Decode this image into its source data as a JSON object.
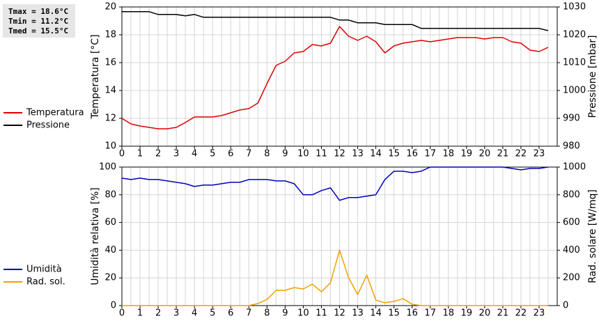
{
  "chart_data": [
    {
      "type": "line",
      "ylabel": "Temperatura [°C]",
      "y2label": "Pressione [mbar]",
      "x": [
        0,
        0.5,
        1,
        1.5,
        2,
        2.5,
        3,
        3.5,
        4,
        4.5,
        5,
        5.5,
        6,
        6.5,
        7,
        7.5,
        8,
        8.5,
        9,
        9.5,
        10,
        10.5,
        11,
        11.5,
        12,
        12.5,
        13,
        13.5,
        14,
        14.5,
        15,
        15.5,
        16,
        16.5,
        17,
        17.5,
        18,
        18.5,
        19,
        19.5,
        20,
        20.5,
        21,
        21.5,
        22,
        22.5,
        23,
        23.5
      ],
      "xlim": [
        0,
        24
      ],
      "xticks": [
        0,
        1,
        2,
        3,
        4,
        5,
        6,
        7,
        8,
        9,
        10,
        11,
        12,
        13,
        14,
        15,
        16,
        17,
        18,
        19,
        20,
        21,
        22,
        23
      ],
      "ylim": [
        10,
        20
      ],
      "yticks": [
        10,
        12,
        14,
        16,
        18,
        20
      ],
      "y2lim": [
        980,
        1030
      ],
      "y2ticks": [
        980,
        990,
        1000,
        1010,
        1020,
        1030
      ],
      "grid": true,
      "series": [
        {
          "name": "Temperatura",
          "color": "#dd0000",
          "values": [
            12.0,
            11.6,
            11.45,
            11.35,
            11.25,
            11.25,
            11.35,
            11.7,
            12.1,
            12.1,
            12.1,
            12.2,
            12.4,
            12.6,
            12.7,
            13.1,
            14.5,
            15.8,
            16.1,
            16.7,
            16.8,
            17.3,
            17.2,
            17.4,
            18.6,
            17.9,
            17.6,
            17.9,
            17.5,
            16.7,
            17.2,
            17.4,
            17.5,
            17.6,
            17.5,
            17.6,
            17.7,
            17.8,
            17.8,
            17.8,
            17.7,
            17.8,
            17.8,
            17.5,
            17.4,
            16.9,
            16.8,
            17.1
          ]
        },
        {
          "name": "Pressione",
          "color": "#000000",
          "axis": "y2",
          "values": [
            1028.3,
            1028.3,
            1028.3,
            1028.3,
            1027.3,
            1027.3,
            1027.3,
            1026.8,
            1027.3,
            1026.3,
            1026.3,
            1026.3,
            1026.3,
            1026.3,
            1026.3,
            1026.3,
            1026.3,
            1026.3,
            1026.3,
            1026.3,
            1026.3,
            1026.3,
            1026.3,
            1026.3,
            1025.3,
            1025.3,
            1024.3,
            1024.3,
            1024.3,
            1023.7,
            1023.7,
            1023.7,
            1023.7,
            1022.3,
            1022.3,
            1022.3,
            1022.3,
            1022.3,
            1022.3,
            1022.3,
            1022.3,
            1022.3,
            1022.3,
            1022.3,
            1022.3,
            1022.3,
            1022.3,
            1021.5
          ]
        }
      ]
    },
    {
      "type": "line",
      "ylabel": "Umidità relativa [%]",
      "y2label": "Rad. solare [W/mq]",
      "x": [
        0,
        0.5,
        1,
        1.5,
        2,
        2.5,
        3,
        3.5,
        4,
        4.5,
        5,
        5.5,
        6,
        6.5,
        7,
        7.5,
        8,
        8.5,
        9,
        9.5,
        10,
        10.5,
        11,
        11.5,
        12,
        12.5,
        13,
        13.5,
        14,
        14.5,
        15,
        15.5,
        16,
        16.5,
        17,
        17.5,
        18,
        18.5,
        19,
        19.5,
        20,
        20.5,
        21,
        21.5,
        22,
        22.5,
        23,
        23.5
      ],
      "xlim": [
        0,
        24
      ],
      "xticks": [
        0,
        1,
        2,
        3,
        4,
        5,
        6,
        7,
        8,
        9,
        10,
        11,
        12,
        13,
        14,
        15,
        16,
        17,
        18,
        19,
        20,
        21,
        22,
        23
      ],
      "ylim": [
        0,
        100
      ],
      "yticks": [
        0,
        20,
        40,
        60,
        80,
        100
      ],
      "y2lim": [
        0,
        1000
      ],
      "y2ticks": [
        0,
        200,
        400,
        600,
        800,
        1000
      ],
      "grid": true,
      "series": [
        {
          "name": "Umidità",
          "color": "#0000bb",
          "values": [
            92,
            91,
            92,
            91,
            91,
            90,
            89,
            88,
            86,
            87,
            87,
            88,
            89,
            89,
            91,
            91,
            91,
            90,
            90,
            88,
            80,
            80,
            83,
            85,
            76,
            78,
            78,
            79,
            80,
            91,
            97,
            97,
            96,
            97,
            100,
            100,
            100,
            100,
            100,
            100,
            100,
            100,
            100,
            99,
            98,
            99,
            99,
            100
          ]
        },
        {
          "name": "Rad. sol.",
          "color": "#f0a000",
          "axis": "y2",
          "values": [
            0,
            0,
            0,
            0,
            0,
            0,
            0,
            0,
            0,
            0,
            0,
            0,
            0,
            0,
            0,
            15,
            45,
            110,
            110,
            130,
            120,
            155,
            100,
            165,
            400,
            200,
            80,
            220,
            40,
            20,
            30,
            50,
            10,
            0,
            0,
            0,
            0,
            0,
            0,
            0,
            0,
            0,
            0,
            0,
            0,
            0,
            0,
            0
          ]
        }
      ]
    }
  ],
  "stats": [
    "Tmax = 18.6°C",
    "Tmin = 11.2°C",
    "Tmed = 15.5°C"
  ]
}
